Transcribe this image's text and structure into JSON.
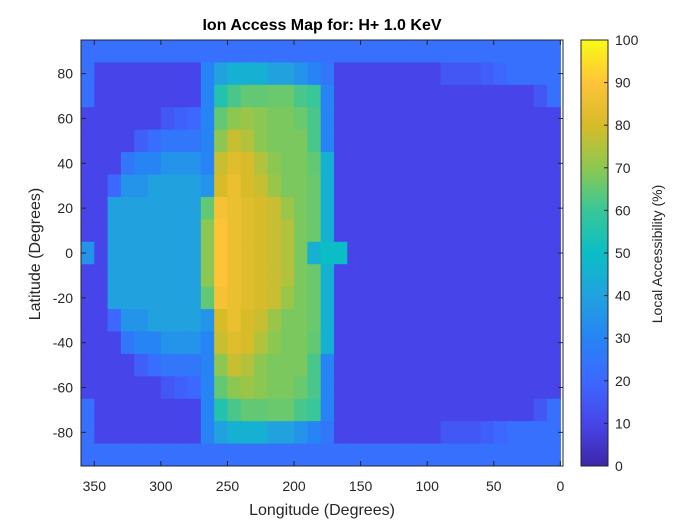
{
  "chart_data": {
    "type": "heatmap",
    "title": "Ion Access Map for: H+ 1.0 KeV",
    "xlabel": "Longitude (Degrees)",
    "ylabel": "Latitude (Degrees)",
    "colorbar_label": "Local Accessibility (%)",
    "colormap": "parula",
    "x_reversed": true,
    "xlim": [
      -2,
      360
    ],
    "ylim": [
      -95,
      95
    ],
    "clim": [
      0,
      100
    ],
    "xticks": [
      350,
      300,
      250,
      200,
      150,
      100,
      50,
      0
    ],
    "yticks": [
      80,
      60,
      40,
      20,
      0,
      -20,
      -40,
      -60,
      -80
    ],
    "cbticks": [
      0,
      10,
      20,
      30,
      40,
      50,
      60,
      70,
      80,
      90,
      100
    ],
    "lon_step": 10,
    "lat_step": 10,
    "lon_centers": [
      355,
      345,
      335,
      325,
      315,
      305,
      295,
      285,
      275,
      265,
      255,
      245,
      235,
      225,
      215,
      205,
      195,
      185,
      175,
      165,
      155,
      145,
      135,
      125,
      115,
      105,
      95,
      85,
      75,
      65,
      55,
      45,
      35,
      25,
      15,
      5
    ],
    "lat_centers": [
      90,
      80,
      70,
      60,
      50,
      40,
      30,
      20,
      10,
      0,
      -10,
      -20,
      -30,
      -40,
      -50,
      -60,
      -70,
      -80,
      -90
    ],
    "values": [
      [
        23,
        23,
        23,
        23,
        23,
        23,
        23,
        23,
        23,
        23,
        23,
        23,
        23,
        23,
        23,
        23,
        23,
        23,
        23,
        23,
        23,
        23,
        23,
        23,
        23,
        23,
        23,
        23,
        23,
        23,
        23,
        23,
        23,
        23,
        23,
        23
      ],
      [
        23,
        10,
        10,
        10,
        10,
        10,
        10,
        10,
        10,
        30,
        40,
        45,
        45,
        45,
        40,
        40,
        35,
        30,
        25,
        10,
        10,
        10,
        10,
        10,
        10,
        10,
        10,
        15,
        15,
        15,
        17,
        20,
        23,
        23,
        23,
        23
      ],
      [
        23,
        10,
        10,
        10,
        10,
        10,
        10,
        10,
        10,
        30,
        55,
        62,
        65,
        65,
        66,
        66,
        62,
        60,
        30,
        10,
        10,
        10,
        10,
        10,
        10,
        10,
        10,
        10,
        10,
        10,
        10,
        10,
        10,
        10,
        15,
        23
      ],
      [
        10,
        10,
        10,
        10,
        10,
        10,
        15,
        18,
        20,
        30,
        65,
        70,
        72,
        70,
        68,
        68,
        66,
        62,
        30,
        10,
        10,
        10,
        10,
        10,
        10,
        10,
        10,
        10,
        10,
        10,
        10,
        10,
        10,
        10,
        10,
        10
      ],
      [
        10,
        10,
        10,
        10,
        17,
        22,
        25,
        25,
        25,
        30,
        70,
        78,
        75,
        70,
        68,
        68,
        68,
        62,
        30,
        10,
        10,
        10,
        10,
        10,
        10,
        10,
        10,
        10,
        10,
        10,
        10,
        10,
        10,
        10,
        10,
        10
      ],
      [
        10,
        10,
        10,
        25,
        30,
        30,
        35,
        35,
        35,
        30,
        78,
        82,
        80,
        75,
        70,
        68,
        68,
        65,
        45,
        10,
        10,
        10,
        10,
        10,
        10,
        10,
        10,
        10,
        10,
        10,
        10,
        10,
        10,
        10,
        10,
        10
      ],
      [
        10,
        10,
        20,
        35,
        35,
        40,
        40,
        40,
        40,
        35,
        80,
        85,
        80,
        78,
        72,
        68,
        68,
        66,
        45,
        10,
        10,
        10,
        10,
        10,
        10,
        10,
        10,
        10,
        10,
        10,
        10,
        10,
        10,
        10,
        10,
        10
      ],
      [
        10,
        10,
        40,
        40,
        40,
        40,
        40,
        40,
        40,
        65,
        88,
        85,
        82,
        80,
        78,
        72,
        68,
        66,
        45,
        10,
        10,
        10,
        10,
        10,
        10,
        10,
        10,
        10,
        10,
        10,
        10,
        10,
        10,
        10,
        10,
        10
      ],
      [
        10,
        10,
        40,
        40,
        40,
        40,
        40,
        40,
        40,
        70,
        90,
        85,
        82,
        80,
        78,
        75,
        68,
        66,
        45,
        10,
        10,
        10,
        10,
        10,
        10,
        10,
        10,
        10,
        10,
        10,
        10,
        10,
        10,
        10,
        10,
        10
      ],
      [
        35,
        10,
        40,
        40,
        40,
        40,
        40,
        40,
        40,
        70,
        90,
        85,
        82,
        80,
        78,
        75,
        68,
        45,
        50,
        50,
        10,
        10,
        10,
        10,
        10,
        10,
        10,
        10,
        10,
        10,
        10,
        10,
        10,
        10,
        10,
        10
      ],
      [
        10,
        10,
        40,
        40,
        40,
        40,
        40,
        40,
        40,
        70,
        90,
        85,
        82,
        80,
        78,
        75,
        68,
        66,
        45,
        10,
        10,
        10,
        10,
        10,
        10,
        10,
        10,
        10,
        10,
        10,
        10,
        10,
        10,
        10,
        10,
        10
      ],
      [
        10,
        10,
        40,
        40,
        40,
        40,
        40,
        40,
        40,
        65,
        88,
        85,
        82,
        80,
        78,
        72,
        68,
        66,
        45,
        10,
        10,
        10,
        10,
        10,
        10,
        10,
        10,
        10,
        10,
        10,
        10,
        10,
        10,
        10,
        10,
        10
      ],
      [
        10,
        10,
        20,
        35,
        35,
        40,
        40,
        40,
        40,
        35,
        80,
        85,
        80,
        78,
        72,
        68,
        68,
        66,
        45,
        10,
        10,
        10,
        10,
        10,
        10,
        10,
        10,
        10,
        10,
        10,
        10,
        10,
        10,
        10,
        10,
        10
      ],
      [
        10,
        10,
        10,
        25,
        30,
        30,
        35,
        35,
        35,
        30,
        78,
        82,
        80,
        75,
        70,
        68,
        68,
        65,
        45,
        10,
        10,
        10,
        10,
        10,
        10,
        10,
        10,
        10,
        10,
        10,
        10,
        10,
        10,
        10,
        10,
        10
      ],
      [
        10,
        10,
        10,
        10,
        17,
        22,
        25,
        25,
        25,
        30,
        70,
        78,
        75,
        70,
        68,
        68,
        68,
        62,
        30,
        10,
        10,
        10,
        10,
        10,
        10,
        10,
        10,
        10,
        10,
        10,
        10,
        10,
        10,
        10,
        10,
        10
      ],
      [
        10,
        10,
        10,
        10,
        10,
        10,
        15,
        18,
        20,
        30,
        65,
        70,
        72,
        70,
        68,
        68,
        66,
        62,
        30,
        10,
        10,
        10,
        10,
        10,
        10,
        10,
        10,
        10,
        10,
        10,
        10,
        10,
        10,
        10,
        10,
        10
      ],
      [
        23,
        10,
        10,
        10,
        10,
        10,
        10,
        10,
        10,
        30,
        55,
        62,
        65,
        65,
        66,
        66,
        62,
        60,
        30,
        10,
        10,
        10,
        10,
        10,
        10,
        10,
        10,
        10,
        10,
        10,
        10,
        10,
        10,
        10,
        15,
        23
      ],
      [
        23,
        10,
        10,
        10,
        10,
        10,
        10,
        10,
        10,
        30,
        40,
        45,
        45,
        45,
        40,
        40,
        35,
        30,
        25,
        10,
        10,
        10,
        10,
        10,
        10,
        10,
        10,
        15,
        15,
        15,
        17,
        20,
        23,
        23,
        23,
        23
      ],
      [
        23,
        23,
        23,
        23,
        23,
        23,
        23,
        23,
        23,
        23,
        23,
        23,
        23,
        23,
        23,
        23,
        23,
        23,
        23,
        23,
        23,
        23,
        23,
        23,
        23,
        23,
        23,
        23,
        23,
        23,
        23,
        23,
        23,
        23,
        23,
        23
      ]
    ]
  }
}
